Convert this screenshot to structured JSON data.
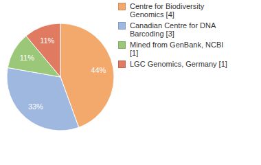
{
  "chart_data": {
    "type": "pie",
    "categories": [
      "Centre for Biodiversity Genomics [4]",
      "Canadian Centre for DNA Barcoding [3]",
      "Mined from GenBank, NCBI [1]",
      "LGC Genomics, Germany [1]"
    ],
    "values": [
      44,
      33,
      11,
      11
    ],
    "value_labels": [
      "44%",
      "33%",
      "11%",
      "11%"
    ],
    "colors": [
      "#f2a96b",
      "#9fb8e0",
      "#9bc878",
      "#e07b62"
    ],
    "data_labels": true,
    "legend": "top right"
  }
}
